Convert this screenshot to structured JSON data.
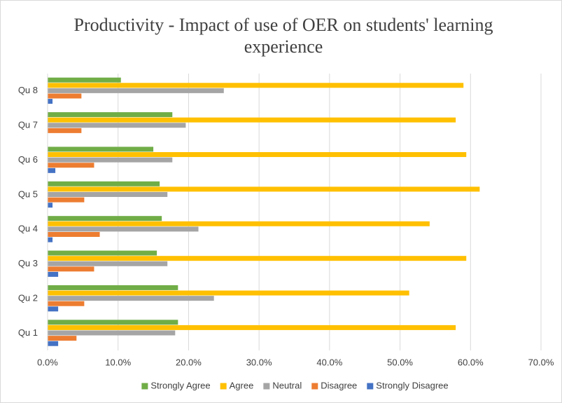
{
  "chart_data": {
    "type": "barh",
    "title": "Productivity - Impact of use of OER on students' learning experience",
    "categories": [
      "Qu 1",
      "Qu 2",
      "Qu 3",
      "Qu 4",
      "Qu 5",
      "Qu 6",
      "Qu 7",
      "Qu 8"
    ],
    "series": [
      {
        "name": "Strongly Agree",
        "color": "#70ad47",
        "values": [
          18.5,
          18.5,
          15.5,
          16.2,
          15.9,
          15.0,
          17.7,
          10.4
        ]
      },
      {
        "name": "Agree",
        "color": "#ffc000",
        "values": [
          57.9,
          51.3,
          59.4,
          54.2,
          61.3,
          59.4,
          57.9,
          59.0
        ]
      },
      {
        "name": "Neutral",
        "color": "#a5a5a5",
        "values": [
          18.1,
          23.6,
          17.0,
          21.4,
          17.0,
          17.7,
          19.6,
          25.0
        ]
      },
      {
        "name": "Disagree",
        "color": "#ed7d31",
        "values": [
          4.1,
          5.2,
          6.6,
          7.4,
          5.2,
          6.6,
          4.8,
          4.8
        ]
      },
      {
        "name": "Strongly Disagree",
        "color": "#4472c4",
        "values": [
          1.5,
          1.5,
          1.5,
          0.7,
          0.7,
          1.1,
          0,
          0.7
        ]
      }
    ],
    "xlim": [
      0,
      70
    ],
    "xticks": [
      {
        "value": 0,
        "label": "0.0%"
      },
      {
        "value": 10,
        "label": "10.0%"
      },
      {
        "value": 20,
        "label": "20.0%"
      },
      {
        "value": 30,
        "label": "30.0%"
      },
      {
        "value": 40,
        "label": "40.0%"
      },
      {
        "value": 50,
        "label": "50.0%"
      },
      {
        "value": 60,
        "label": "60.0%"
      },
      {
        "value": 70,
        "label": "70.0%"
      }
    ],
    "grid": true,
    "legend": "bottom"
  }
}
